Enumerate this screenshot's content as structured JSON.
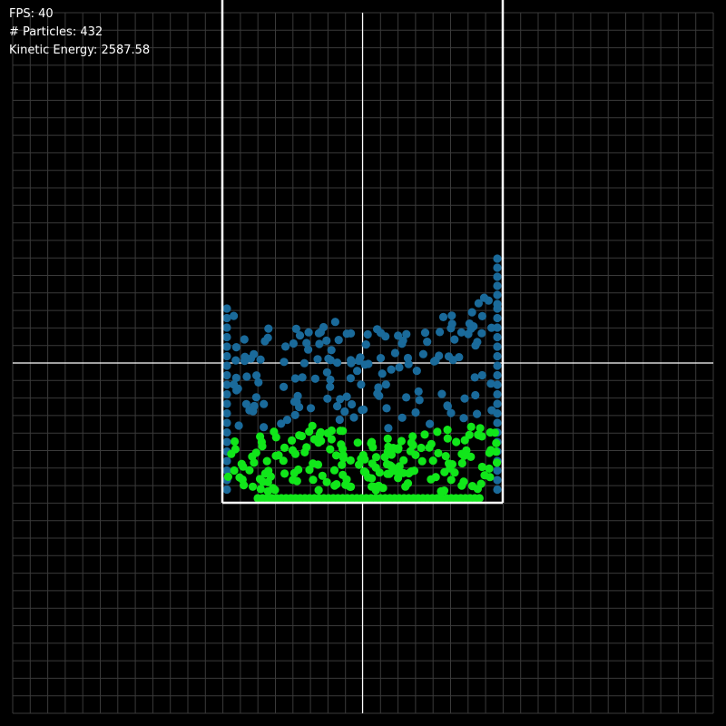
{
  "hud": {
    "fps_label": "FPS: 40",
    "particles_label": "# Particles: 432",
    "energy_label": "Kinetic Energy: 2587.58"
  },
  "stats": {
    "fps": 40,
    "particle_count": 432,
    "blue_particle_count": 200,
    "green_particle_count": 232,
    "kinetic_energy": 2587.58
  },
  "colors": {
    "background": "#000000",
    "grid_line": "#3a3a3a",
    "axis_line": "#ffffff",
    "container_wall": "#ffffff",
    "blue_fluid": "#1a6a9a",
    "green_fluid": "#11e61a",
    "hud_text": "#ffffff"
  }
}
